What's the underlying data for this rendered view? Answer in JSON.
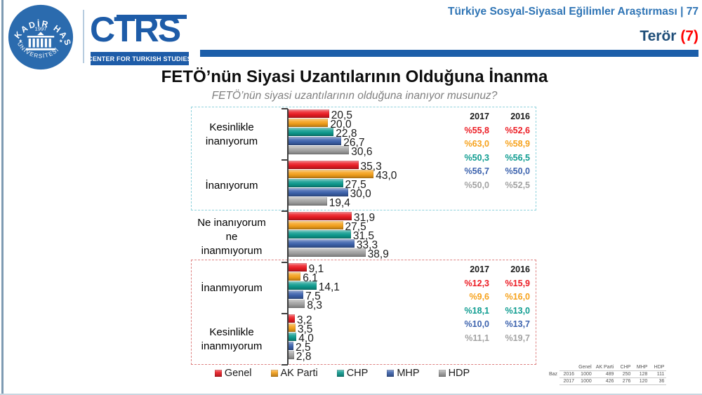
{
  "header": {
    "study_title": "Türkiye Sosyal-Siyasal Eğilimler Araştırması | 77",
    "section_label": "Terör ",
    "section_number": "(7)",
    "logo": {
      "university_top": "KADİR HAS",
      "university_bottom": "ÜNİVERSİTESİ",
      "year": "1997",
      "star": "★",
      "acronym": "CTRS",
      "center_name": "CENTER FOR TURKISH STUDIES"
    }
  },
  "title": "FETÖ’nün Siyasi Uzantılarının Olduğuna İnanma",
  "subtitle": "FETÖ’nün siyasi uzantılarının olduğuna inanıyor musunuz?",
  "colors": {
    "genel": "#EC1C24",
    "ak_parti": "#F6A21C",
    "chp": "#0E9C90",
    "mhp": "#3D63AE",
    "hdp": "#A3A3A3",
    "header_blue": "#1C5EA9",
    "section_blue": "#1F4E79",
    "section_red": "#FF0000"
  },
  "chart_data": {
    "type": "bar",
    "orientation": "horizontal",
    "title": "FETÖ’nün Siyasi Uzantılarının Olduğuna İnanma",
    "subtitle": "FETÖ’nün siyasi uzantılarının olduğuna inanıyor musunuz?",
    "value_unit": "percent",
    "value_format": "comma_decimal",
    "xlim": [
      0,
      50
    ],
    "categories": [
      {
        "lines": [
          "Kesinlikle",
          "inanıyorum"
        ]
      },
      {
        "lines": [
          "İnanıyorum"
        ]
      },
      {
        "lines": [
          "Ne inanıyorum",
          "ne",
          "inanmıyorum"
        ]
      },
      {
        "lines": [
          "İnanmıyorum"
        ]
      },
      {
        "lines": [
          "Kesinlikle",
          "inanmıyorum"
        ]
      }
    ],
    "series": [
      {
        "name": "Genel",
        "color": "#EC1C24",
        "values": [
          20.5,
          35.3,
          31.9,
          9.1,
          3.2
        ]
      },
      {
        "name": "AK Parti",
        "color": "#F6A21C",
        "values": [
          20.0,
          43.0,
          27.5,
          6.1,
          3.5
        ]
      },
      {
        "name": "CHP",
        "color": "#0E9C90",
        "values": [
          22.8,
          27.5,
          31.5,
          14.1,
          4.0
        ]
      },
      {
        "name": "MHP",
        "color": "#3D63AE",
        "values": [
          26.7,
          30.0,
          33.3,
          7.5,
          2.5
        ]
      },
      {
        "name": "HDP",
        "color": "#A3A3A3",
        "values": [
          30.6,
          19.4,
          38.9,
          8.3,
          2.8
        ]
      }
    ],
    "legend": [
      "Genel",
      "AK Parti",
      "CHP",
      "MHP",
      "HDP"
    ],
    "legend_position": "bottom"
  },
  "comparison_boxes": [
    {
      "scope": "believers",
      "headers": [
        "2017",
        "2016"
      ],
      "rows": [
        {
          "series": "Genel",
          "v2017": "%55,8",
          "v2016": "%52,6"
        },
        {
          "series": "AK Parti",
          "v2017": "%63,0",
          "v2016": "%58,9"
        },
        {
          "series": "CHP",
          "v2017": "%50,3",
          "v2016": "%56,5"
        },
        {
          "series": "MHP",
          "v2017": "%56,7",
          "v2016": "%50,0"
        },
        {
          "series": "HDP",
          "v2017": "%50,0",
          "v2016": "%52,5"
        }
      ]
    },
    {
      "scope": "non-believers",
      "headers": [
        "2017",
        "2016"
      ],
      "rows": [
        {
          "series": "Genel",
          "v2017": "%12,3",
          "v2016": "%15,9"
        },
        {
          "series": "AK Parti",
          "v2017": "%9,6",
          "v2016": "%16,0"
        },
        {
          "series": "CHP",
          "v2017": "%18,1",
          "v2016": "%13,0"
        },
        {
          "series": "MHP",
          "v2017": "%10,0",
          "v2016": "%13,7"
        },
        {
          "series": "HDP",
          "v2017": "%11,1",
          "v2016": "%19,7"
        }
      ]
    }
  ],
  "baz_table": {
    "row_label": "Baz",
    "col_headers": [
      "Genel",
      "AK Parti",
      "CHP",
      "MHP",
      "HDP"
    ],
    "rows": [
      {
        "year": "2016",
        "values": [
          "1000",
          "489",
          "250",
          "128",
          "111"
        ]
      },
      {
        "year": "2017",
        "values": [
          "1000",
          "426",
          "276",
          "120",
          "36"
        ]
      }
    ]
  }
}
